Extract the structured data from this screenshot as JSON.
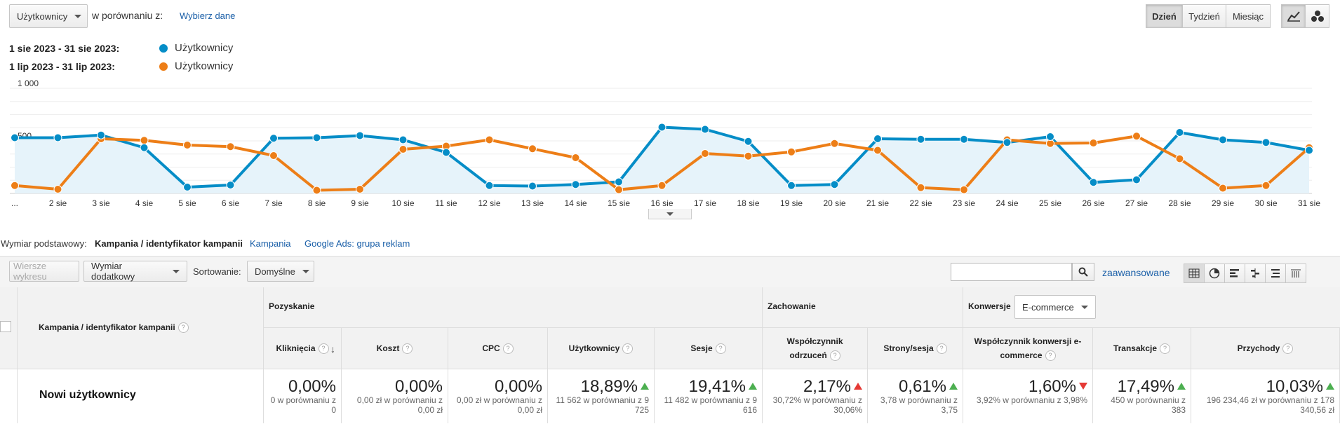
{
  "toolbar": {
    "metric_select": "Użytkownicy",
    "compare_label": "w porównaniu z:",
    "choose_data_link": "Wybierz dane",
    "period_buttons": [
      "Dzień",
      "Tydzień",
      "Miesiąc"
    ],
    "active_period": "Dzień"
  },
  "legend": {
    "current_range": "1 sie 2023 - 31 sie 2023:",
    "previous_range": "1 lip 2023 - 31 lip 2023:",
    "current_series": "Użytkownicy",
    "previous_series": "Użytkownicy",
    "current_color": "#058dc7",
    "previous_color": "#ed7e17"
  },
  "chart_data": {
    "type": "line",
    "y_ticks": [
      "1 000",
      "500"
    ],
    "ylim": [
      0,
      1000
    ],
    "grid": true,
    "categories": [
      "...",
      "2 sie",
      "3 sie",
      "4 sie",
      "5 sie",
      "6 sie",
      "7 sie",
      "8 sie",
      "9 sie",
      "10 sie",
      "11 sie",
      "12 sie",
      "13 sie",
      "14 sie",
      "15 sie",
      "16 sie",
      "17 sie",
      "18 sie",
      "19 sie",
      "20 sie",
      "21 sie",
      "22 sie",
      "23 sie",
      "24 sie",
      "25 sie",
      "26 sie",
      "27 sie",
      "28 sie",
      "29 sie",
      "30 sie",
      "31 sie"
    ],
    "series": [
      {
        "name": "Użytkownicy",
        "color": "#058dc7",
        "values": [
          530,
          530,
          555,
          435,
          60,
          80,
          525,
          530,
          550,
          510,
          390,
          75,
          70,
          85,
          110,
          630,
          610,
          495,
          75,
          85,
          520,
          515,
          515,
          485,
          540,
          105,
          130,
          580,
          510,
          485,
          410
        ]
      },
      {
        "name": "Użytkownicy",
        "color": "#ed7e17",
        "values": [
          75,
          40,
          520,
          505,
          460,
          445,
          360,
          30,
          40,
          420,
          450,
          510,
          425,
          340,
          35,
          75,
          380,
          355,
          395,
          475,
          410,
          55,
          35,
          510,
          475,
          480,
          545,
          330,
          50,
          75,
          435
        ]
      }
    ]
  },
  "dimension_bar": {
    "label": "Wymiar podstawowy:",
    "active": "Kampania / identyfikator kampanii",
    "options": [
      "Kampania",
      "Google Ads: grupa reklam"
    ]
  },
  "table_toolbar": {
    "plot_rows": "Wiersze wykresu",
    "secondary_dimension": "Wymiar dodatkowy",
    "sort_label": "Sortowanie:",
    "sort_value": "Domyślne",
    "search_placeholder": "",
    "advanced_link": "zaawansowane"
  },
  "table": {
    "dimension_header": "Kampania / identyfikator kampanii",
    "group_acquisition": "Pozyskanie",
    "group_behavior": "Zachowanie",
    "group_conversions": "Konwersje",
    "conversion_select": "E-commerce",
    "columns": [
      {
        "label": "Kliknięcia"
      },
      {
        "label": "Koszt"
      },
      {
        "label": "CPC"
      },
      {
        "label": "Użytkownicy"
      },
      {
        "label": "Sesje"
      },
      {
        "label": "Współczynnik odrzuceń"
      },
      {
        "label": "Strony/sesja"
      },
      {
        "label": "Współczynnik konwersji e-commerce"
      },
      {
        "label": "Transakcje"
      },
      {
        "label": "Przychody"
      }
    ],
    "row_label": "Nowi użytkownicy",
    "row_values": [
      {
        "value": "0,00%",
        "sub": "0 w porównaniu z 0",
        "trend": ""
      },
      {
        "value": "0,00%",
        "sub": "0,00 zł w porównaniu z 0,00 zł",
        "trend": ""
      },
      {
        "value": "0,00%",
        "sub": "0,00 zł w porównaniu z 0,00 zł",
        "trend": ""
      },
      {
        "value": "18,89%",
        "sub": "11 562 w porównaniu z 9 725",
        "trend": "up"
      },
      {
        "value": "19,41%",
        "sub": "11 482 w porównaniu z 9 616",
        "trend": "up"
      },
      {
        "value": "2,17%",
        "sub": "30,72% w porównaniu z 30,06%",
        "trend": "up-red"
      },
      {
        "value": "0,61%",
        "sub": "3,78 w porównaniu z 3,75",
        "trend": "up"
      },
      {
        "value": "1,60%",
        "sub": "3,92% w porównaniu z 3,98%",
        "trend": "down"
      },
      {
        "value": "17,49%",
        "sub": "450 w porównaniu z 383",
        "trend": "up"
      },
      {
        "value": "10,03%",
        "sub": "196 234,46 zł w porównaniu z 178 340,56 zł",
        "trend": "up"
      }
    ]
  }
}
